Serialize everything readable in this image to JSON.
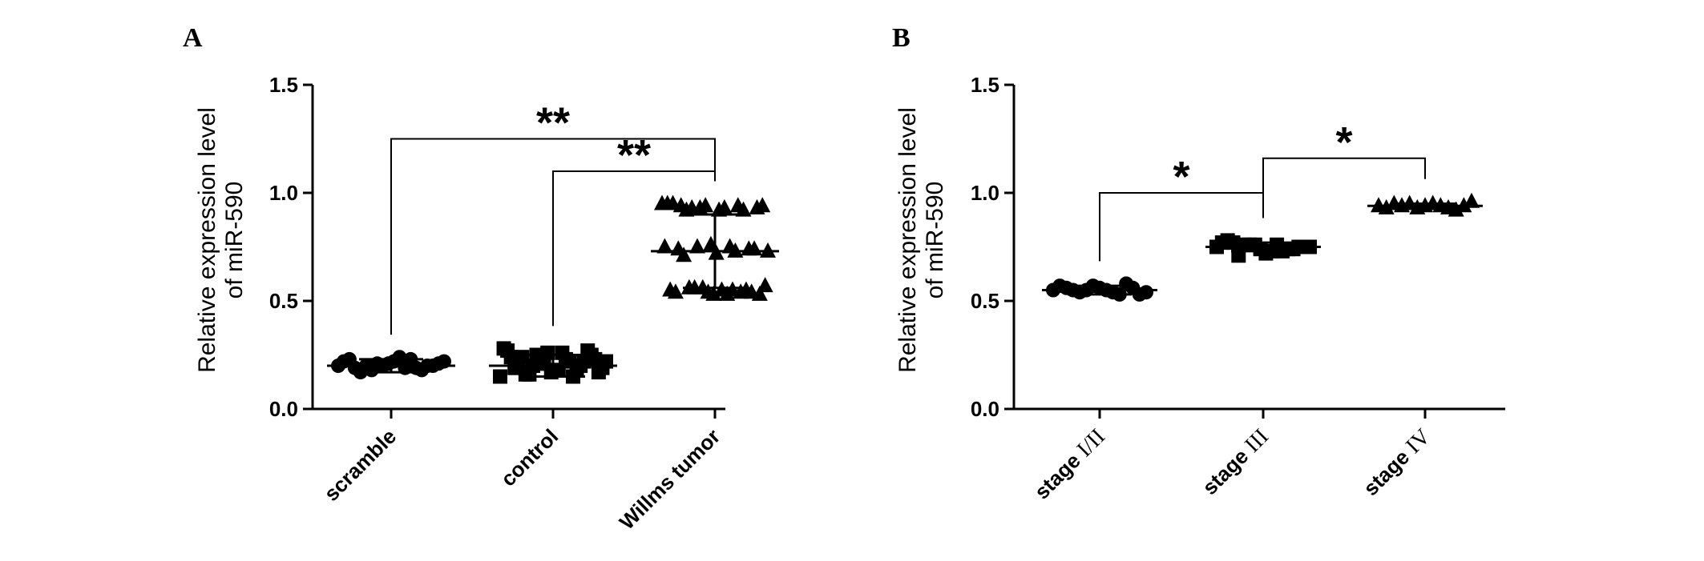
{
  "chart_data": [
    {
      "panel": "A",
      "type": "scatter",
      "ylabel_lines": [
        "Relative expression level",
        "of miR-590"
      ],
      "ylim": [
        0,
        1.5
      ],
      "yticks": [
        "0.0",
        "0.5",
        "1.0",
        "1.5"
      ],
      "categories": [
        "scramble",
        "control",
        "Willms tumor"
      ],
      "groups": [
        {
          "name": "scramble",
          "marker": "circle",
          "mean": 0.2,
          "sd": 0.03,
          "values": [
            0.2,
            0.21,
            0.19,
            0.22,
            0.2,
            0.18,
            0.23,
            0.21,
            0.2,
            0.19,
            0.22,
            0.2,
            0.17,
            0.24,
            0.21,
            0.2,
            0.19,
            0.22,
            0.18,
            0.23
          ]
        },
        {
          "name": "control",
          "marker": "square",
          "mean": 0.2,
          "sd": 0.05,
          "values": [
            0.15,
            0.16,
            0.17,
            0.18,
            0.19,
            0.2,
            0.21,
            0.22,
            0.23,
            0.24,
            0.25,
            0.26,
            0.27,
            0.28,
            0.16,
            0.18,
            0.2,
            0.22,
            0.24,
            0.26,
            0.15,
            0.17,
            0.19,
            0.21,
            0.23,
            0.25,
            0.27,
            0.2,
            0.18,
            0.22
          ]
        },
        {
          "name": "Willms tumor",
          "marker": "triangle",
          "mean": 0.73,
          "sd": 0.17,
          "values": [
            0.95,
            0.94,
            0.93,
            0.92,
            0.94,
            0.93,
            0.95,
            0.92,
            0.94,
            0.93,
            0.92,
            0.94,
            0.95,
            0.93,
            0.76,
            0.75,
            0.74,
            0.73,
            0.74,
            0.75,
            0.72,
            0.73,
            0.74,
            0.75,
            0.71,
            0.56,
            0.55,
            0.54,
            0.53,
            0.55,
            0.56,
            0.54,
            0.53,
            0.55,
            0.57,
            0.54,
            0.56,
            0.53,
            0.55,
            0.54
          ]
        }
      ],
      "comparisons": [
        {
          "from": 0,
          "to": 2,
          "y": 1.25,
          "label": "**"
        },
        {
          "from": 1,
          "to": 2,
          "y": 1.1,
          "label": "**"
        }
      ]
    },
    {
      "panel": "B",
      "type": "scatter",
      "ylabel_lines": [
        "Relative expression level",
        "of miR-590"
      ],
      "ylim": [
        0,
        1.5
      ],
      "yticks": [
        "0.0",
        "0.5",
        "1.0",
        "1.5"
      ],
      "categories": [
        {
          "prefix": "stage",
          "roman": "I/II"
        },
        {
          "prefix": "stage",
          "roman": "III"
        },
        {
          "prefix": "stage",
          "roman": "IV"
        }
      ],
      "groups": [
        {
          "name": "stage I/II",
          "marker": "circle",
          "mean": 0.55,
          "sd": 0.02,
          "values": [
            0.55,
            0.56,
            0.54,
            0.57,
            0.53,
            0.55,
            0.56,
            0.54,
            0.58,
            0.55,
            0.53,
            0.56,
            0.54,
            0.57,
            0.55
          ]
        },
        {
          "name": "stage III",
          "marker": "square",
          "mean": 0.75,
          "sd": 0.02,
          "values": [
            0.75,
            0.76,
            0.74,
            0.77,
            0.73,
            0.75,
            0.76,
            0.74,
            0.78,
            0.72,
            0.75,
            0.76,
            0.73,
            0.77,
            0.74,
            0.75,
            0.71,
            0.76
          ]
        },
        {
          "name": "stage IV",
          "marker": "triangle",
          "mean": 0.94,
          "sd": 0.01,
          "values": [
            0.94,
            0.95,
            0.93,
            0.94,
            0.95,
            0.93,
            0.94,
            0.92,
            0.95,
            0.94,
            0.93,
            0.96,
            0.94
          ]
        }
      ],
      "comparisons": [
        {
          "from": 0,
          "to": 1,
          "y": 1.0,
          "label": "*"
        },
        {
          "from": 1,
          "to": 2,
          "y": 1.16,
          "label": "*"
        }
      ]
    }
  ]
}
